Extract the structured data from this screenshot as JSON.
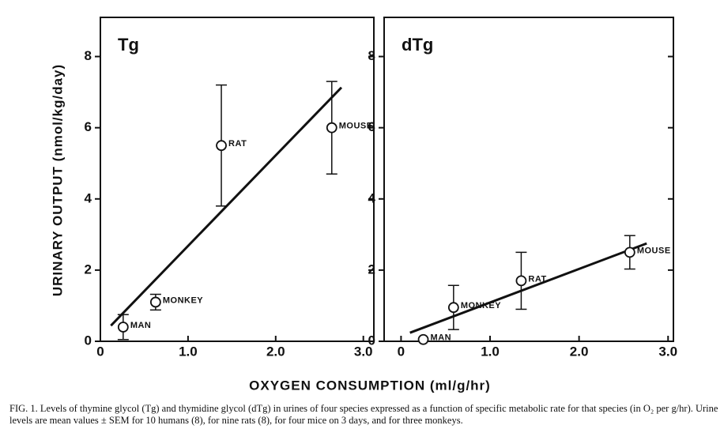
{
  "xlabel": "OXYGEN CONSUMPTION (ml/g/hr)",
  "ylabel": "URINARY OUTPUT (nmol/kg/day)",
  "caption": "FIG. 1.  Levels of thymine glycol (Tg) and thymidine glycol (dTg) in urines of four species expressed as a function of specific metabolic rate for that species (in O₂ per g/hr). Urine levels are mean values ± SEM for 10 humans (8), for nine rats (8), for four mice on 3 days, and for three monkeys.",
  "chart_data": [
    {
      "type": "scatter",
      "title": "Tg",
      "labels": [
        "MAN",
        "MONKEY",
        "RAT",
        "MOUSE"
      ],
      "x": [
        0.26,
        0.63,
        1.38,
        2.64
      ],
      "values": [
        0.4,
        1.1,
        5.5,
        6.0
      ],
      "errors": [
        0.35,
        0.22,
        1.7,
        1.3
      ],
      "fit": {
        "x": [
          0.12,
          2.75
        ],
        "y": [
          0.44,
          7.13
        ]
      },
      "xlim": [
        0,
        3.12
      ],
      "ylim": [
        0,
        9.1
      ],
      "xticks": [
        0,
        {
          "value": 1,
          "label": "1.0"
        },
        {
          "value": 2,
          "label": "2.0"
        },
        {
          "value": 3,
          "label": "3.0"
        }
      ],
      "yticks": [
        0,
        2,
        4,
        6,
        8
      ],
      "color": "#111111"
    },
    {
      "type": "scatter",
      "title": "dTg",
      "labels": [
        "MAN",
        "MONKEY",
        "RAT",
        "MOUSE"
      ],
      "x": [
        0.25,
        0.59,
        1.35,
        2.57
      ],
      "values": [
        0.05,
        0.95,
        1.7,
        2.5
      ],
      "errors": [
        null,
        0.62,
        0.8,
        0.47
      ],
      "fit": {
        "x": [
          0.1,
          2.76
        ],
        "y": [
          0.24,
          2.75
        ]
      },
      "xlim": [
        -0.19,
        3.06
      ],
      "ylim": [
        0,
        9.1
      ],
      "xticks": [
        0,
        {
          "value": 1,
          "label": "1.0"
        },
        {
          "value": 2,
          "label": "2.0"
        },
        {
          "value": 3,
          "label": "3.0"
        }
      ],
      "yticks": [
        0,
        2,
        4,
        6,
        8
      ],
      "color": "#111111"
    }
  ]
}
